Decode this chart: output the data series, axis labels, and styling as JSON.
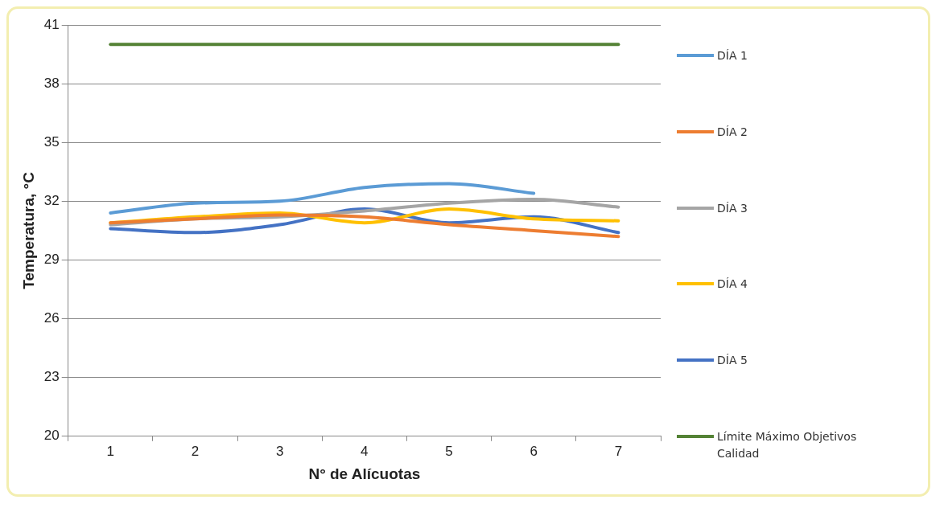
{
  "chart_data": {
    "type": "line",
    "xlabel": "N° de Alícuotas",
    "ylabel": "Temperatura, °C",
    "categories": [
      "1",
      "2",
      "3",
      "4",
      "5",
      "6",
      "7"
    ],
    "series": [
      {
        "name": "DÍA 1",
        "color": "#5b9bd5",
        "values": [
          31.4,
          31.9,
          32.0,
          32.7,
          32.9,
          32.4,
          null
        ]
      },
      {
        "name": "DÍA 2",
        "color": "#ed7d31",
        "values": [
          30.9,
          31.1,
          31.3,
          31.2,
          30.8,
          30.5,
          30.2
        ]
      },
      {
        "name": "DÍA 3",
        "color": "#a5a5a5",
        "values": [
          30.8,
          31.1,
          31.2,
          31.5,
          31.9,
          32.1,
          31.7
        ]
      },
      {
        "name": "DÍA 4",
        "color": "#ffc000",
        "values": [
          30.9,
          31.2,
          31.4,
          30.9,
          31.6,
          31.1,
          31.0
        ]
      },
      {
        "name": "DÍA 5",
        "color": "#4472c4",
        "values": [
          30.6,
          30.4,
          30.8,
          31.6,
          30.9,
          31.2,
          30.4
        ]
      },
      {
        "name": "Límite Máximo Objetivos Calidad",
        "color": "#548235",
        "values": [
          40,
          40,
          40,
          40,
          40,
          40,
          40
        ]
      }
    ],
    "ylim": [
      20,
      41
    ],
    "yticks": [
      20,
      23,
      26,
      29,
      32,
      35,
      38,
      41
    ],
    "grid": "y",
    "legend": "right",
    "marker": "none",
    "line_style": "solid"
  }
}
